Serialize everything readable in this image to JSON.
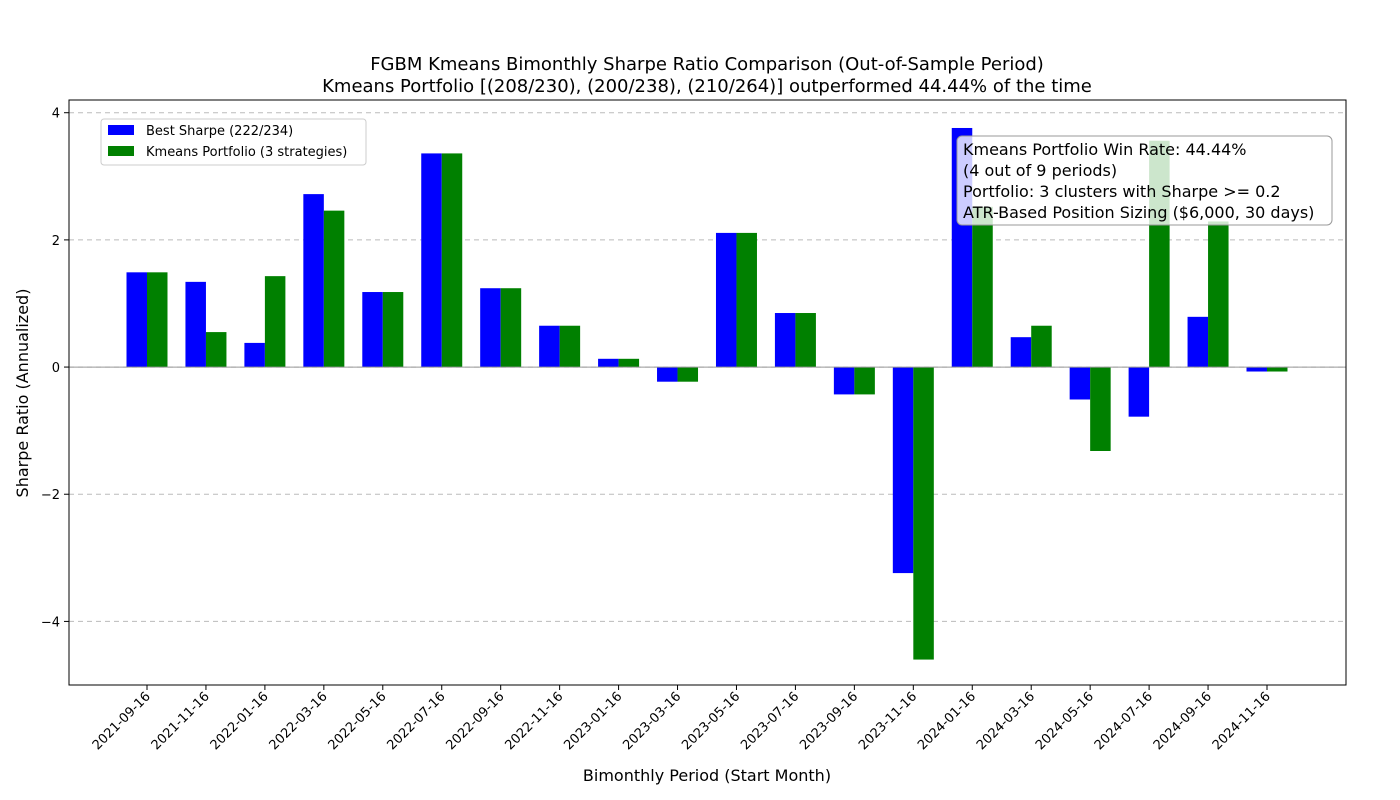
{
  "chart_data": {
    "type": "bar",
    "title": "FGBM Kmeans Bimonthly Sharpe Ratio Comparison (Out-of-Sample Period)",
    "subtitle": "Kmeans Portfolio [(208/230), (200/238), (210/264)] outperformed 44.44% of the time",
    "xlabel": "Bimonthly Period (Start Month)",
    "ylabel": "Sharpe Ratio (Annualized)",
    "ylim": [
      -5.0,
      4.2
    ],
    "yticks": [
      -4,
      -2,
      0,
      2,
      4
    ],
    "ytick_labels": [
      "−4",
      "−2",
      "0",
      "2",
      "4"
    ],
    "grid": "horizontal dashed",
    "legend_position": "top-left",
    "categories": [
      "2021-09-16",
      "2021-11-16",
      "2022-01-16",
      "2022-03-16",
      "2022-05-16",
      "2022-07-16",
      "2022-09-16",
      "2022-11-16",
      "2023-01-16",
      "2023-03-16",
      "2023-05-16",
      "2023-07-16",
      "2023-09-16",
      "2023-11-16",
      "2024-01-16",
      "2024-03-16",
      "2024-05-16",
      "2024-07-16",
      "2024-09-16",
      "2024-11-16"
    ],
    "series": [
      {
        "name": "Best Sharpe (222/234)",
        "color": "#0000ff",
        "values": [
          1.49,
          1.34,
          0.38,
          2.72,
          1.18,
          3.36,
          1.24,
          0.65,
          0.13,
          -0.23,
          2.11,
          0.85,
          -0.43,
          -3.24,
          3.76,
          0.47,
          -0.51,
          -0.78,
          0.79,
          -0.07
        ]
      },
      {
        "name": "Kmeans Portfolio (3 strategies)",
        "color": "#008000",
        "values": [
          1.49,
          0.55,
          1.43,
          2.46,
          1.18,
          3.36,
          1.24,
          0.65,
          0.13,
          -0.23,
          2.11,
          0.85,
          -0.43,
          -4.6,
          2.52,
          0.65,
          -1.32,
          3.56,
          2.29,
          -0.07
        ]
      }
    ],
    "stats_box": {
      "position": "top-right",
      "lines": [
        "Kmeans Portfolio Win Rate: 44.44%",
        "(4 out of 9 periods)",
        "Portfolio: 3 clusters with Sharpe >= 0.2",
        "ATR-Based Position Sizing ($6,000, 30 days)"
      ]
    }
  }
}
